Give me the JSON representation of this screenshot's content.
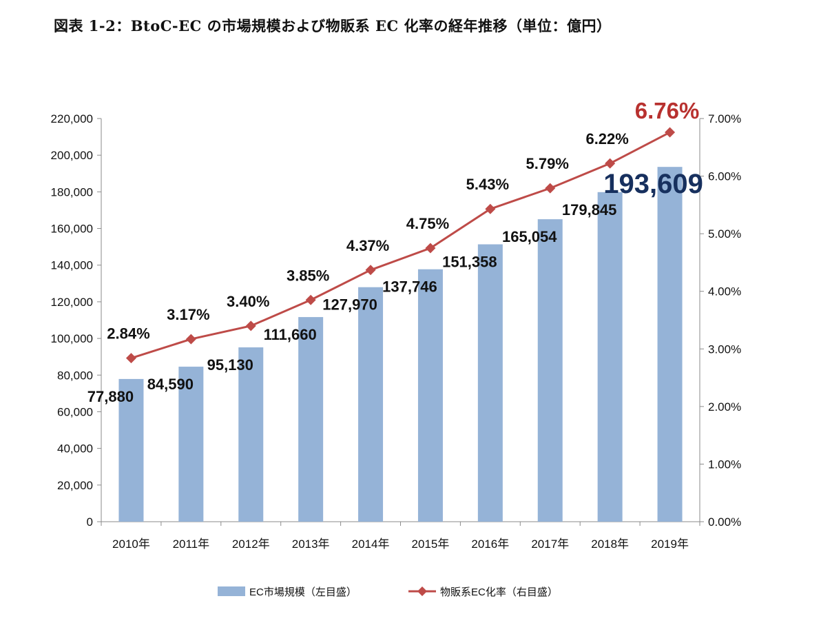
{
  "title": "図表 1-2：BtoC-EC の市場規模および物販系 EC 化率の経年推移（単位：億円）",
  "chart_data": {
    "type": "bar+line",
    "categories": [
      "2010年",
      "2011年",
      "2012年",
      "2013年",
      "2014年",
      "2015年",
      "2016年",
      "2017年",
      "2018年",
      "2019年"
    ],
    "series": [
      {
        "name": "EC市場規模（左目盛）",
        "type": "bar",
        "axis": "left",
        "color": "#95b3d7",
        "values": [
          77880,
          84590,
          95130,
          111660,
          127970,
          137746,
          151358,
          165054,
          179845,
          193609
        ],
        "labels": [
          "77,880",
          "84,590",
          "95,130",
          "111,660",
          "127,970",
          "137,746",
          "151,358",
          "165,054",
          "179,845",
          "193,609"
        ]
      },
      {
        "name": "物販系EC化率（右目盛）",
        "type": "line",
        "axis": "right",
        "color": "#be4b48",
        "values": [
          2.84,
          3.17,
          3.4,
          3.85,
          4.37,
          4.75,
          5.43,
          5.79,
          6.22,
          6.76
        ],
        "labels": [
          "2.84%",
          "3.17%",
          "3.40%",
          "3.85%",
          "4.37%",
          "4.75%",
          "5.43%",
          "5.79%",
          "6.22%",
          "6.76%"
        ]
      }
    ],
    "left_axis": {
      "ylim": [
        0,
        220000
      ],
      "ticks": [
        "0",
        "20,000",
        "40,000",
        "60,000",
        "80,000",
        "100,000",
        "120,000",
        "140,000",
        "160,000",
        "180,000",
        "200,000",
        "220,000"
      ]
    },
    "right_axis": {
      "ylim": [
        0,
        7
      ],
      "ticks": [
        "0.00%",
        "1.00%",
        "2.00%",
        "3.00%",
        "4.00%",
        "5.00%",
        "6.00%",
        "7.00%"
      ]
    },
    "highlight": {
      "bar_label_color": "#17305e",
      "line_label_color": "#b8312f"
    },
    "grid": false,
    "legend_position": "bottom"
  }
}
